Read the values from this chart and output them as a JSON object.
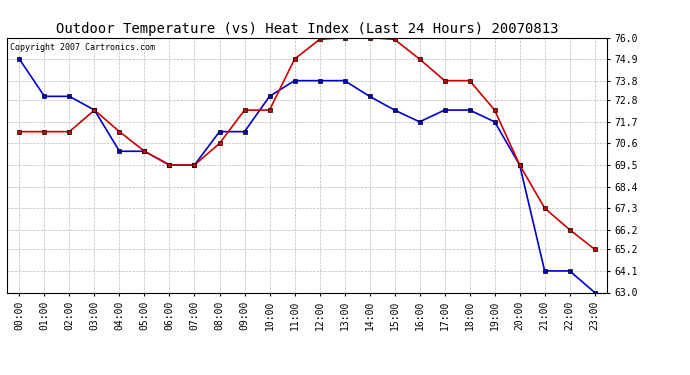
{
  "title": "Outdoor Temperature (vs) Heat Index (Last 24 Hours) 20070813",
  "copyright": "Copyright 2007 Cartronics.com",
  "x_labels": [
    "00:00",
    "01:00",
    "02:00",
    "03:00",
    "04:00",
    "05:00",
    "06:00",
    "07:00",
    "08:00",
    "09:00",
    "10:00",
    "11:00",
    "12:00",
    "13:00",
    "14:00",
    "15:00",
    "16:00",
    "17:00",
    "18:00",
    "19:00",
    "20:00",
    "21:00",
    "22:00",
    "23:00"
  ],
  "outdoor_temp": [
    74.9,
    73.0,
    73.0,
    72.3,
    70.2,
    70.2,
    69.5,
    69.5,
    71.2,
    71.2,
    73.0,
    73.8,
    73.8,
    73.8,
    73.0,
    72.3,
    71.7,
    72.3,
    72.3,
    71.7,
    69.5,
    64.1,
    64.1,
    63.0
  ],
  "heat_index": [
    71.2,
    71.2,
    71.2,
    72.3,
    71.2,
    70.2,
    69.5,
    69.5,
    70.6,
    72.3,
    72.3,
    74.9,
    75.9,
    76.0,
    76.0,
    75.9,
    74.9,
    73.8,
    73.8,
    72.3,
    69.5,
    67.3,
    66.2,
    65.2
  ],
  "temp_color": "#0000cc",
  "heat_color": "#cc0000",
  "ylim_min": 63.0,
  "ylim_max": 76.0,
  "yticks": [
    63.0,
    64.1,
    65.2,
    66.2,
    67.3,
    68.4,
    69.5,
    70.6,
    71.7,
    72.8,
    73.8,
    74.9,
    76.0
  ],
  "bg_color": "#ffffff",
  "grid_color": "#bbbbbb",
  "title_fontsize": 10,
  "copyright_fontsize": 6,
  "tick_fontsize": 7
}
